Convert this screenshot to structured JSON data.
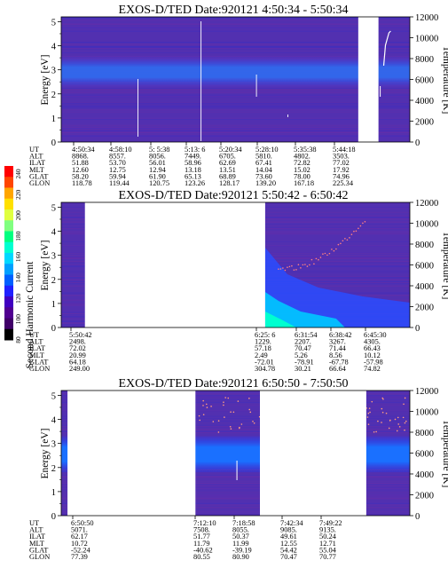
{
  "colorbar": {
    "title": "Second Harmonic Current",
    "ticks": [
      "240",
      "220",
      "200",
      "180",
      "160",
      "140",
      "120",
      "100",
      "80"
    ],
    "colors": [
      "#ff0000",
      "#ff4500",
      "#ffa500",
      "#ffe000",
      "#e0ff40",
      "#80ff80",
      "#00ff80",
      "#00ffd0",
      "#00d8ff",
      "#00a0ff",
      "#0060ff",
      "#2020ff",
      "#4000c0",
      "#500090",
      "#400068",
      "#000000"
    ]
  },
  "chart_data": [
    {
      "type": "heatmap",
      "title": "EXOS-D/TED   Date:920121  4:50:34 - 5:50:34",
      "ylabel": "Energy [eV]",
      "y2label": "Temperature [K]",
      "yticks": [
        "0",
        "1",
        "2",
        "3",
        "4",
        "5"
      ],
      "y2ticks": [
        "0",
        "2000",
        "4000",
        "6000",
        "8000",
        "10000",
        "12000"
      ],
      "ylim": [
        0,
        5.2
      ],
      "y2lim": [
        0,
        12000
      ],
      "data_gaps": [
        [
          0.852,
          0.91
        ]
      ],
      "band_energy": [
        2.2,
        3.6
      ],
      "orbit": {
        "labels": [
          "UT",
          "ALT",
          "ILAT",
          "MLT",
          "GLAT",
          "GLON"
        ],
        "columns": [
          [
            "4:50:34",
            "8868.",
            "51.88",
            "12.60",
            "58.20",
            "118.78"
          ],
          [
            "4:58:10",
            "8557.",
            "53.70",
            "12.75",
            "59.94",
            "119.44"
          ],
          [
            "5: 5:38",
            "8056.",
            "56.01",
            "12.94",
            "61.90",
            "120.75"
          ],
          [
            "5:13: 6",
            "7449.",
            "58.96",
            "13.18",
            "65.13",
            "123.26"
          ],
          [
            "5:20:34",
            "6705.",
            "62.69",
            "13.51",
            "68.89",
            "128.17"
          ],
          [
            "5:28:10",
            "5810.",
            "67.41",
            "14.04",
            "73.60",
            "139.20"
          ],
          [
            "5:35:38",
            "4802.",
            "72.82",
            "15.02",
            "78.00",
            "167.18"
          ],
          [
            "5:44:18",
            "3503.",
            "77.02",
            "17.92",
            "74.96",
            "225.34"
          ]
        ]
      }
    },
    {
      "type": "heatmap",
      "title": "EXOS-D/TED   Date:920121  5:50:42 - 6:50:42",
      "ylabel": "Energy [eV]",
      "y2label": "Temperature [K]",
      "yticks": [
        "0",
        "1",
        "2",
        "3",
        "4",
        "5"
      ],
      "y2ticks": [
        "0",
        "2000",
        "4000",
        "6000",
        "8000",
        "10000",
        "12000"
      ],
      "ylim": [
        0,
        5.2
      ],
      "y2lim": [
        0,
        12000
      ],
      "data_gaps": [
        [
          0.068,
          0.585
        ]
      ],
      "orbit": {
        "labels": [
          "UT",
          "ALT",
          "ILAT",
          "MLT",
          "GLAT",
          "GLON"
        ],
        "columns": [
          [
            "5:50:42",
            "2498.",
            "72.02",
            "20.99",
            "64.18",
            "249.00"
          ],
          [
            "6:25: 6",
            "1229.",
            "57.18",
            "2.49",
            "-72.01",
            "304.78"
          ],
          [
            "6:31:54",
            "2207.",
            "70.47",
            "5.26",
            "-78.91",
            "30.21"
          ],
          [
            "6:38:42",
            "3267.",
            "71.44",
            "8.56",
            "-67.78",
            "66.64"
          ],
          [
            "6:45:30",
            "4305.",
            "66.43",
            "10.12",
            "-57.98",
            "74.82"
          ]
        ]
      }
    },
    {
      "type": "heatmap",
      "title": "EXOS-D/TED   Date:920121  6:50:50 - 7:50:50",
      "ylabel": "Energy [eV]",
      "y2label": "Temperature [K]",
      "yticks": [
        "0",
        "1",
        "2",
        "3",
        "4",
        "5"
      ],
      "y2ticks": [
        "0",
        "2000",
        "4000",
        "6000",
        "8000",
        "10000",
        "12000"
      ],
      "ylim": [
        0,
        5.2
      ],
      "y2lim": [
        0,
        12000
      ],
      "data_gaps": [
        [
          0.018,
          0.385
        ],
        [
          0.57,
          0.875
        ]
      ],
      "band_energy": [
        1.8,
        3.3
      ],
      "orbit": {
        "labels": [
          "UT",
          "ALT",
          "ILAT",
          "MLT",
          "GLAT",
          "GLON"
        ],
        "columns": [
          [
            "6:50:50",
            "5071.",
            "62.17",
            "10.72",
            "-52.24",
            "77.39"
          ],
          [
            "7:12:10",
            "7508.",
            "51.77",
            "11.79",
            "-40.62",
            "80.55"
          ],
          [
            "7:18:58",
            "8055.",
            "50.37",
            "11.99",
            "-39.19",
            "80.90"
          ],
          [
            "7:42:34",
            "9085.",
            "49.61",
            "12.55",
            "54.42",
            "70.47"
          ],
          [
            "7:49:22",
            "9135.",
            "50.24",
            "12.71",
            "55.04",
            "70.77"
          ]
        ]
      }
    }
  ]
}
